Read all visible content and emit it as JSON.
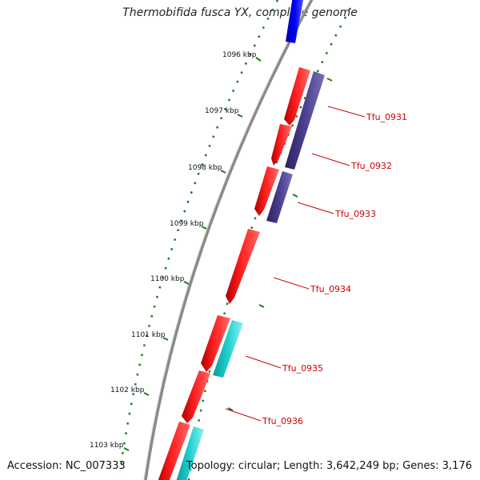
{
  "title": "Thermobifida fusca YX, complete genome",
  "footer": {
    "accession": "Accession: NC_007333",
    "summary": "Topology: circular; Length: 3,642,249 bp; Genes: 3,176"
  },
  "colors": {
    "backbone": "#8a8a8a",
    "forward_cds": "#ff0000",
    "reverse_cds": "#4b3f8f",
    "rna": "#1fd0d0",
    "upstream_feature": "#0000ff",
    "label": "#d40000",
    "ticks": "#1a7a1a"
  },
  "ticks": [
    "1096 kbp",
    "1097 kbp",
    "1098 kbp",
    "1099 kbp",
    "1100 kbp",
    "1101 kbp",
    "1102 kbp",
    "1103 kbp"
  ],
  "gene_labels": [
    "Tfu_0931",
    "Tfu_0932",
    "Tfu_0933",
    "Tfu_0934",
    "Tfu_0935",
    "Tfu_0936"
  ]
}
